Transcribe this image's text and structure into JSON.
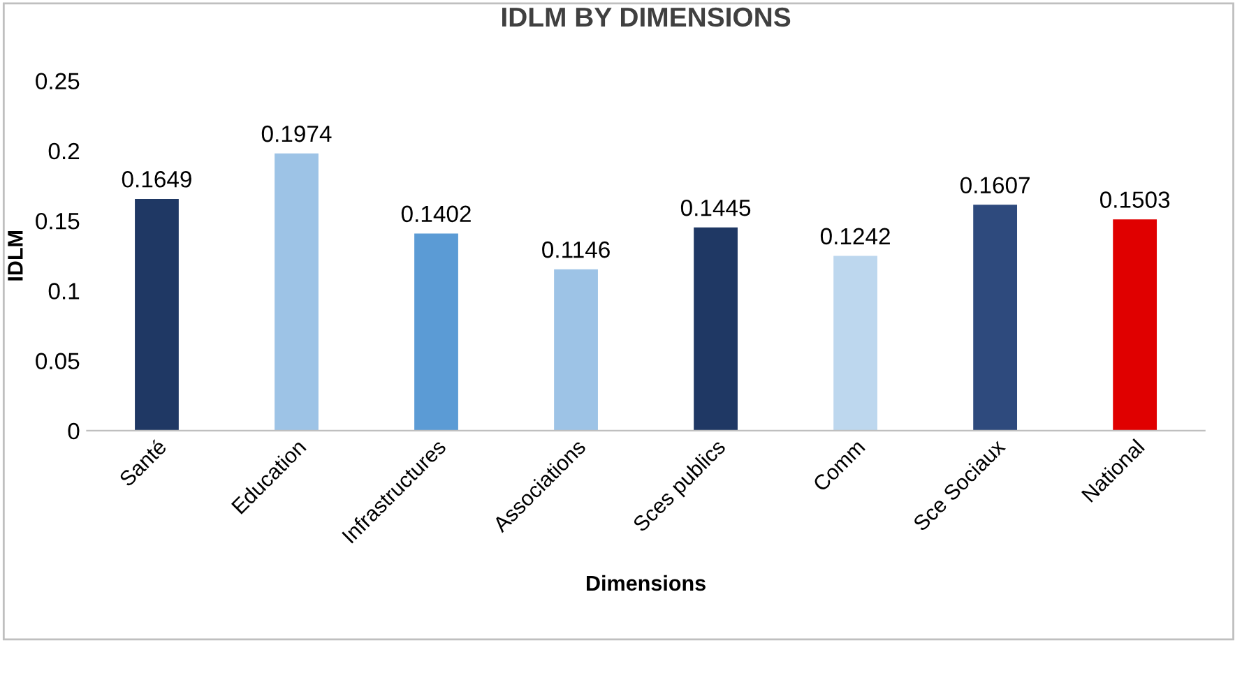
{
  "chart_data": {
    "type": "bar",
    "title": "IDLM BY DIMENSIONS",
    "xlabel": "Dimensions",
    "ylabel": "IDLM",
    "categories": [
      "Santé",
      "Education",
      "Infrastructures",
      "Associations",
      "Sces publics",
      "Comm",
      "Sce Sociaux",
      "National"
    ],
    "values": [
      0.1649,
      0.1974,
      0.1402,
      0.1146,
      0.1445,
      0.1242,
      0.1607,
      0.1503
    ],
    "colors": [
      "#1f3864",
      "#9dc3e6",
      "#5b9bd5",
      "#9dc3e6",
      "#1f3864",
      "#bdd7ee",
      "#2e4a7d",
      "#e00000"
    ],
    "ylim": [
      0,
      0.25
    ],
    "yticks": [
      0,
      0.05,
      0.1,
      0.15,
      0.2,
      0.25
    ],
    "data_labels": true,
    "grid": false,
    "legend": false
  }
}
